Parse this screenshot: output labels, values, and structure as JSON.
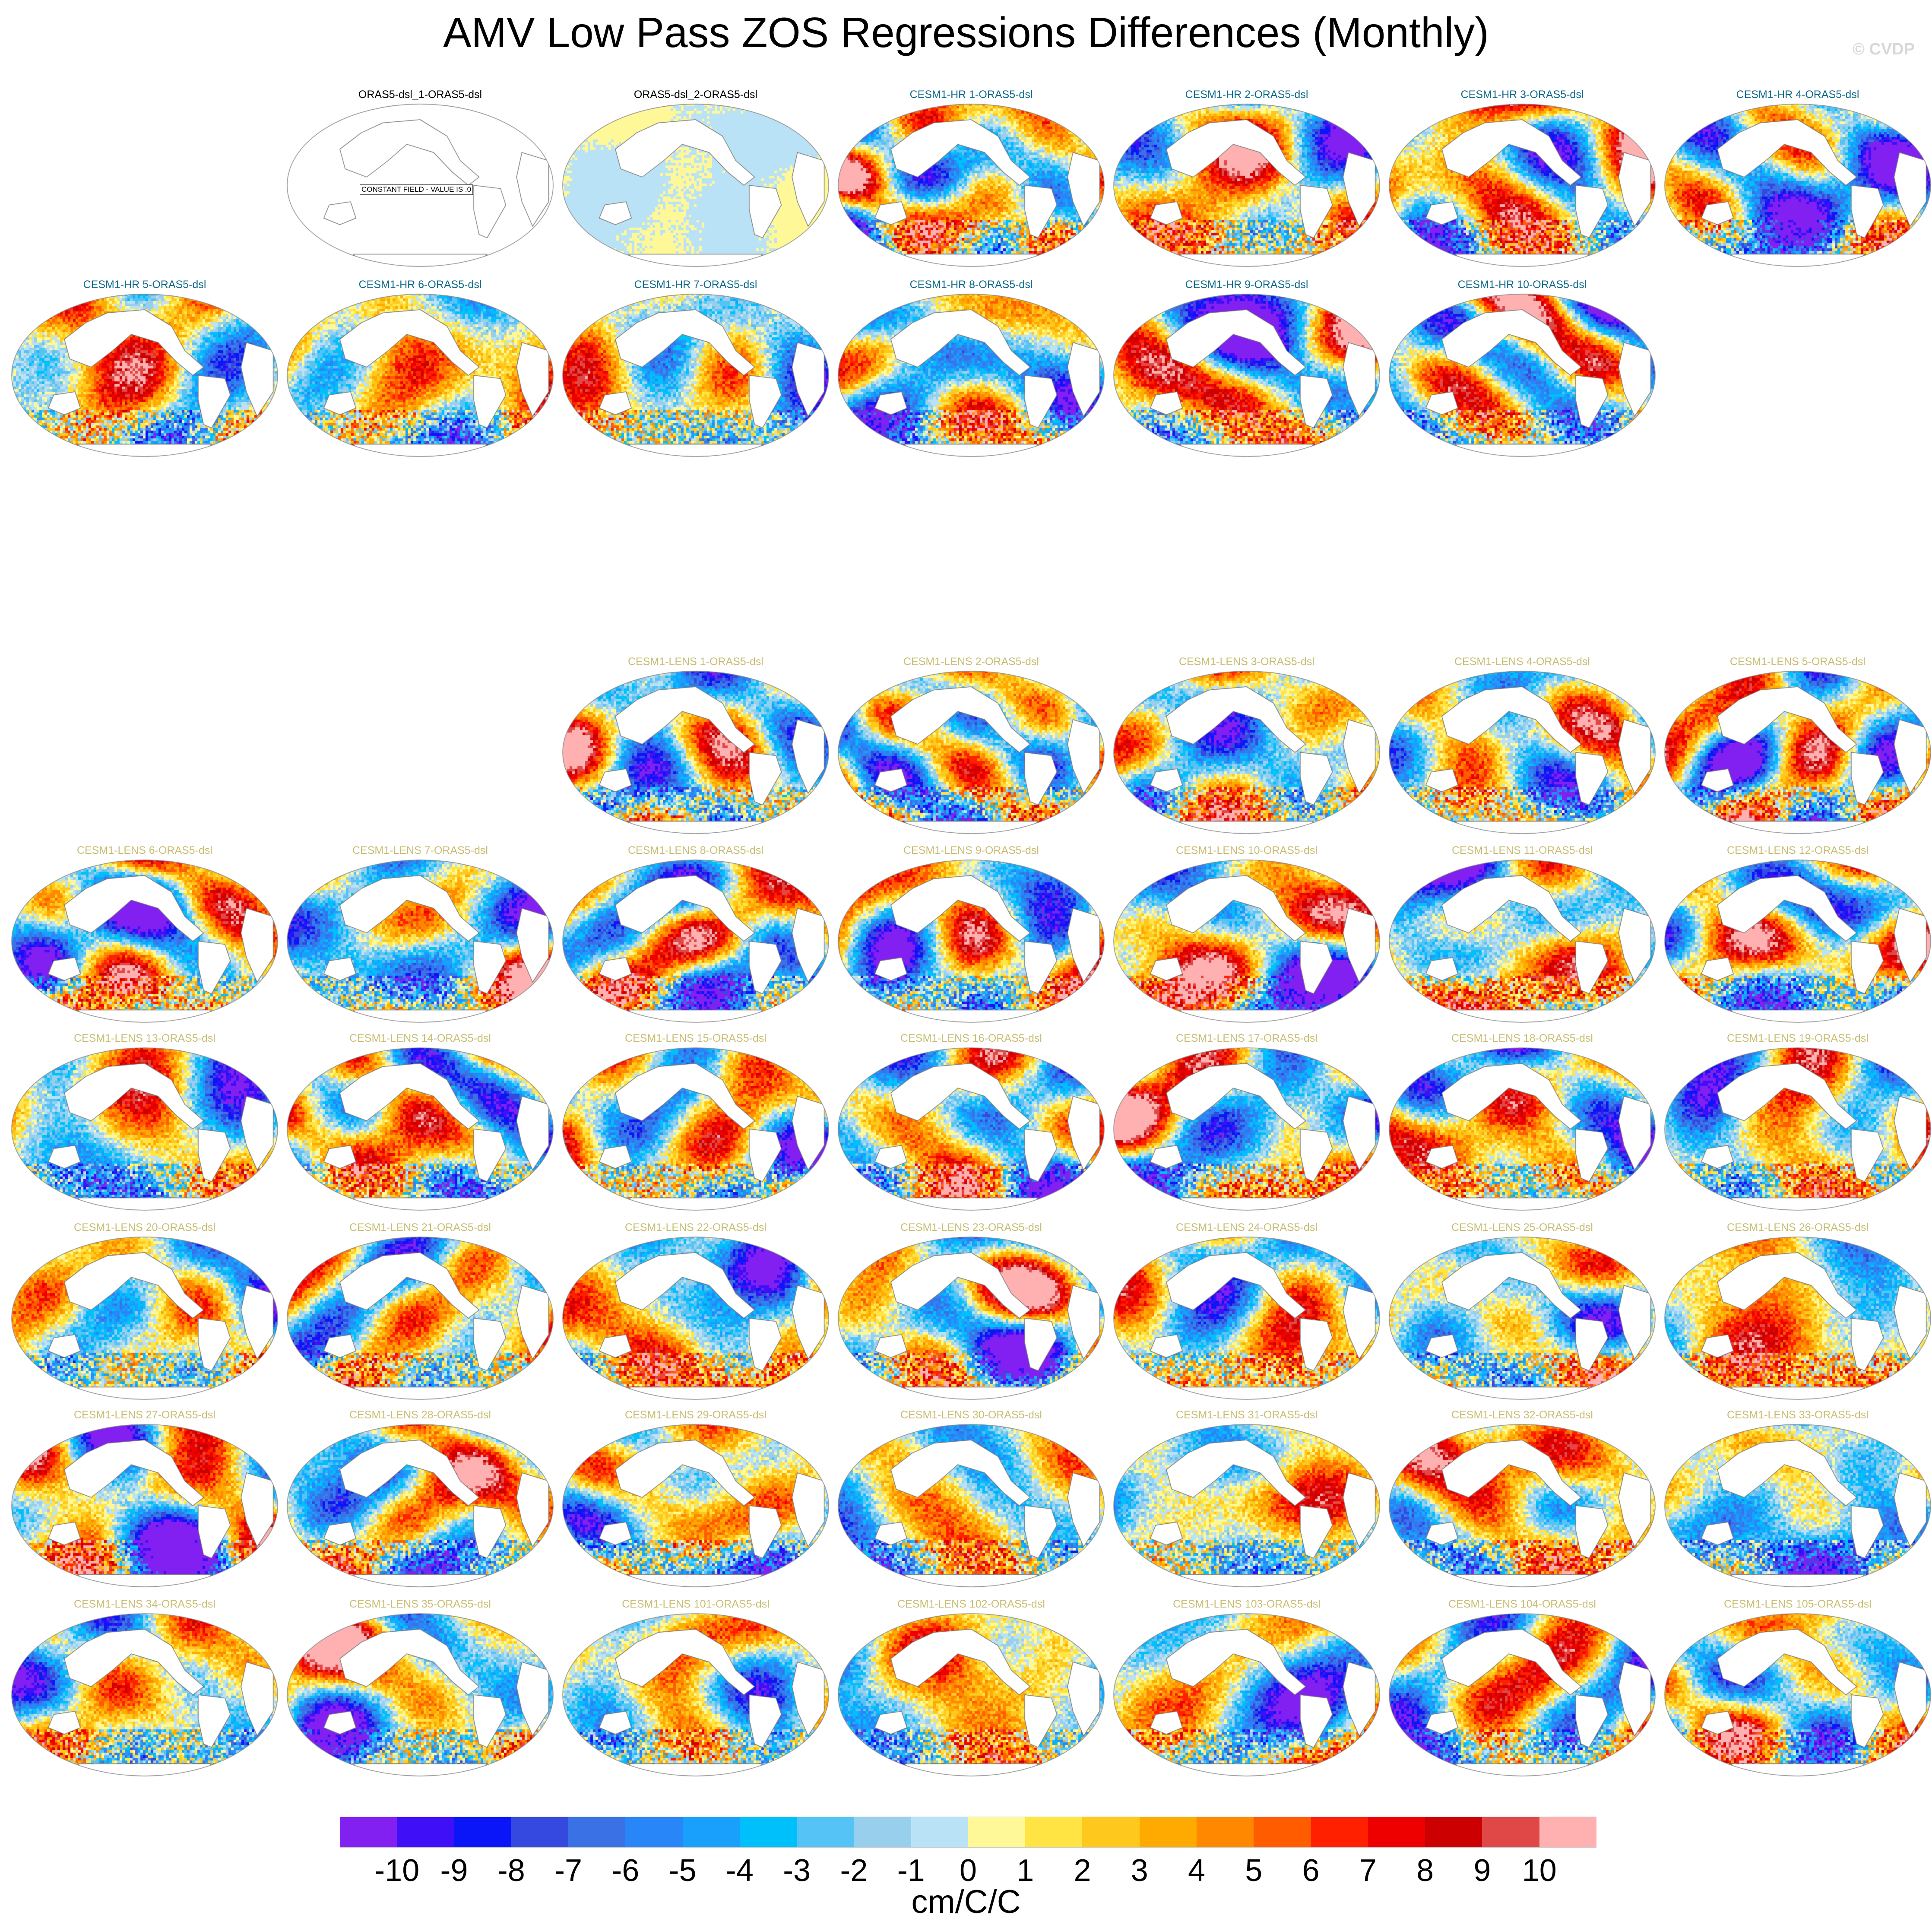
{
  "chart_data": {
    "type": "heatmap",
    "title": "AMV Low Pass ZOS Regressions Differences (Monthly)",
    "watermark": "© CVDP",
    "colorbar": {
      "label": "cm/C/C",
      "ticks": [
        "-10",
        "-9",
        "-8",
        "-7",
        "-6",
        "-5",
        "-4",
        "-3",
        "-2",
        "-1",
        "0",
        "1",
        "2",
        "3",
        "4",
        "5",
        "6",
        "7",
        "8",
        "9",
        "10"
      ],
      "colors": [
        "#8120f0",
        "#3f0ff8",
        "#0a16f8",
        "#3548e0",
        "#3a72e6",
        "#2886f8",
        "#18a0fc",
        "#00c0fc",
        "#55c3f5",
        "#98cfec",
        "#bae2f6",
        "#fff898",
        "#ffe444",
        "#ffc81c",
        "#ffaa00",
        "#ff8800",
        "#ff5c00",
        "#ff2000",
        "#ee0000",
        "#cc0000",
        "#e04848",
        "#ffb0b0"
      ]
    },
    "title_colors": {
      "obs": "#000000",
      "hr": "#116b8a",
      "lens": "#c8bd72"
    },
    "panels": {
      "obs": [
        {
          "title": "ORAS5-dsl_1-ORAS5-dsl",
          "note": "CONSTANT FIELD - VALUE IS .0",
          "amplitude": 0
        },
        {
          "title": "ORAS5-dsl_2-ORAS5-dsl",
          "amplitude": 0.12
        }
      ],
      "hr": [
        "CESM1-HR 1-ORAS5-dsl",
        "CESM1-HR 2-ORAS5-dsl",
        "CESM1-HR 3-ORAS5-dsl",
        "CESM1-HR 4-ORAS5-dsl",
        "CESM1-HR 5-ORAS5-dsl",
        "CESM1-HR 6-ORAS5-dsl",
        "CESM1-HR 7-ORAS5-dsl",
        "CESM1-HR 8-ORAS5-dsl",
        "CESM1-HR 9-ORAS5-dsl",
        "CESM1-HR 10-ORAS5-dsl"
      ],
      "lens": [
        "CESM1-LENS 1-ORAS5-dsl",
        "CESM1-LENS 2-ORAS5-dsl",
        "CESM1-LENS 3-ORAS5-dsl",
        "CESM1-LENS 4-ORAS5-dsl",
        "CESM1-LENS 5-ORAS5-dsl",
        "CESM1-LENS 6-ORAS5-dsl",
        "CESM1-LENS 7-ORAS5-dsl",
        "CESM1-LENS 8-ORAS5-dsl",
        "CESM1-LENS 9-ORAS5-dsl",
        "CESM1-LENS 10-ORAS5-dsl",
        "CESM1-LENS 11-ORAS5-dsl",
        "CESM1-LENS 12-ORAS5-dsl",
        "CESM1-LENS 13-ORAS5-dsl",
        "CESM1-LENS 14-ORAS5-dsl",
        "CESM1-LENS 15-ORAS5-dsl",
        "CESM1-LENS 16-ORAS5-dsl",
        "CESM1-LENS 17-ORAS5-dsl",
        "CESM1-LENS 18-ORAS5-dsl",
        "CESM1-LENS 19-ORAS5-dsl",
        "CESM1-LENS 20-ORAS5-dsl",
        "CESM1-LENS 21-ORAS5-dsl",
        "CESM1-LENS 22-ORAS5-dsl",
        "CESM1-LENS 23-ORAS5-dsl",
        "CESM1-LENS 24-ORAS5-dsl",
        "CESM1-LENS 25-ORAS5-dsl",
        "CESM1-LENS 26-ORAS5-dsl",
        "CESM1-LENS 27-ORAS5-dsl",
        "CESM1-LENS 28-ORAS5-dsl",
        "CESM1-LENS 29-ORAS5-dsl",
        "CESM1-LENS 30-ORAS5-dsl",
        "CESM1-LENS 31-ORAS5-dsl",
        "CESM1-LENS 32-ORAS5-dsl",
        "CESM1-LENS 33-ORAS5-dsl",
        "CESM1-LENS 34-ORAS5-dsl",
        "CESM1-LENS 35-ORAS5-dsl",
        "CESM1-LENS 101-ORAS5-dsl",
        "CESM1-LENS 102-ORAS5-dsl",
        "CESM1-LENS 103-ORAS5-dsl",
        "CESM1-LENS 104-ORAS5-dsl",
        "CESM1-LENS 105-ORAS5-dsl"
      ]
    }
  }
}
